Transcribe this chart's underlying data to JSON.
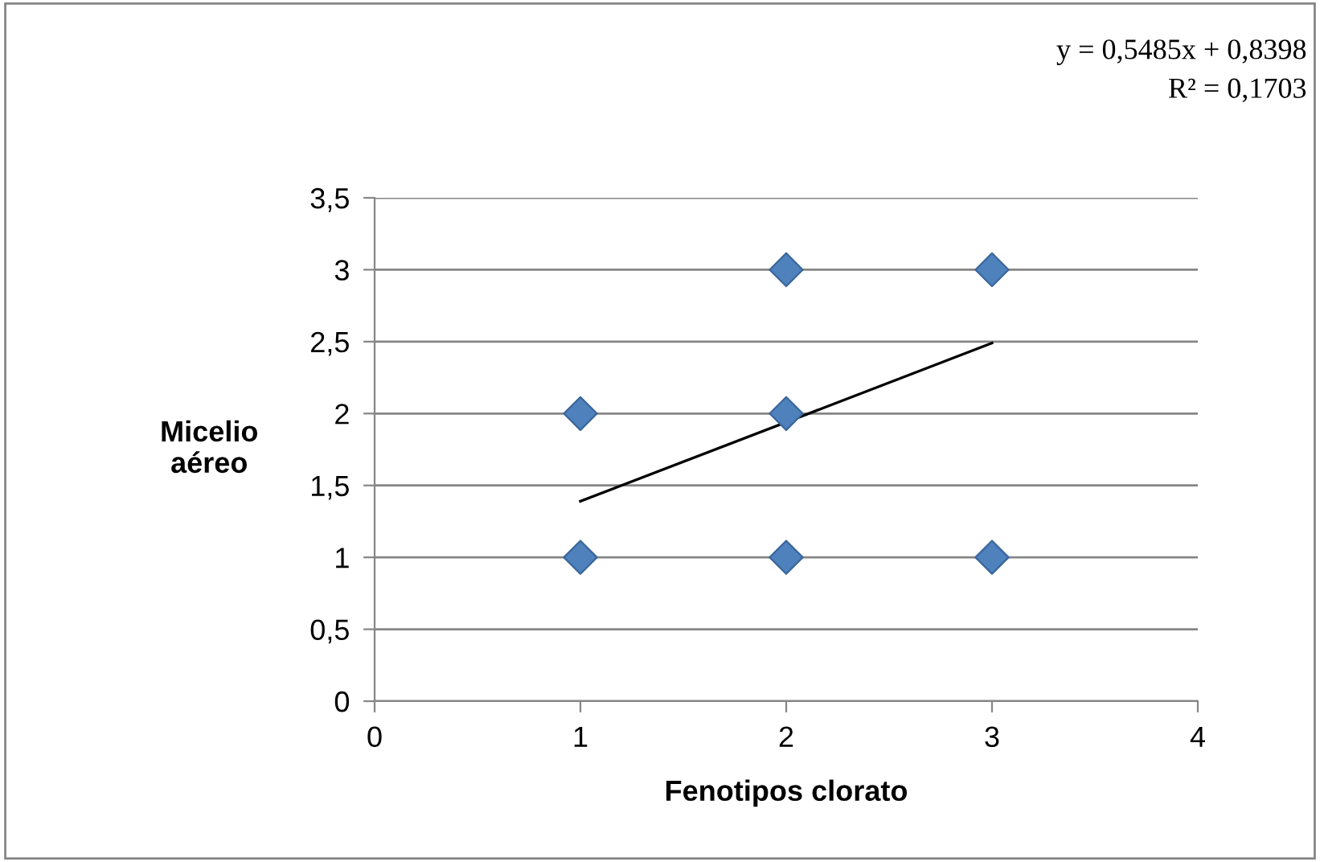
{
  "chart_data": {
    "type": "scatter",
    "xlabel": "Fenotipos clorato",
    "ylabel": "Micelio\naéreo",
    "annotations": [
      "y = 0,5485x + 0,8398",
      "R² = 0,1703"
    ],
    "series": [
      {
        "color": "#4f81bd",
        "marker": "diamond",
        "x": [
          1,
          1,
          2,
          2,
          2,
          3,
          3
        ],
        "values": [
          1,
          2,
          1,
          2,
          3,
          1,
          3
        ]
      },
      {
        "type": "line",
        "color": "#000000",
        "marker": "none",
        "x": [
          1,
          3
        ],
        "values": [
          1.39,
          2.49
        ]
      }
    ],
    "xlim": [
      0,
      4
    ],
    "xticks": [
      0,
      1,
      2,
      3,
      4
    ],
    "ylim": [
      0,
      3.5
    ],
    "yticks": [
      0,
      {
        "value": 0.5,
        "label": "0,5"
      },
      1,
      {
        "value": 1.5,
        "label": "1,5"
      },
      2,
      {
        "value": 2.5,
        "label": "2,5"
      },
      3,
      {
        "value": 3.5,
        "label": "3,5"
      }
    ],
    "grid": "y",
    "legend": false
  }
}
